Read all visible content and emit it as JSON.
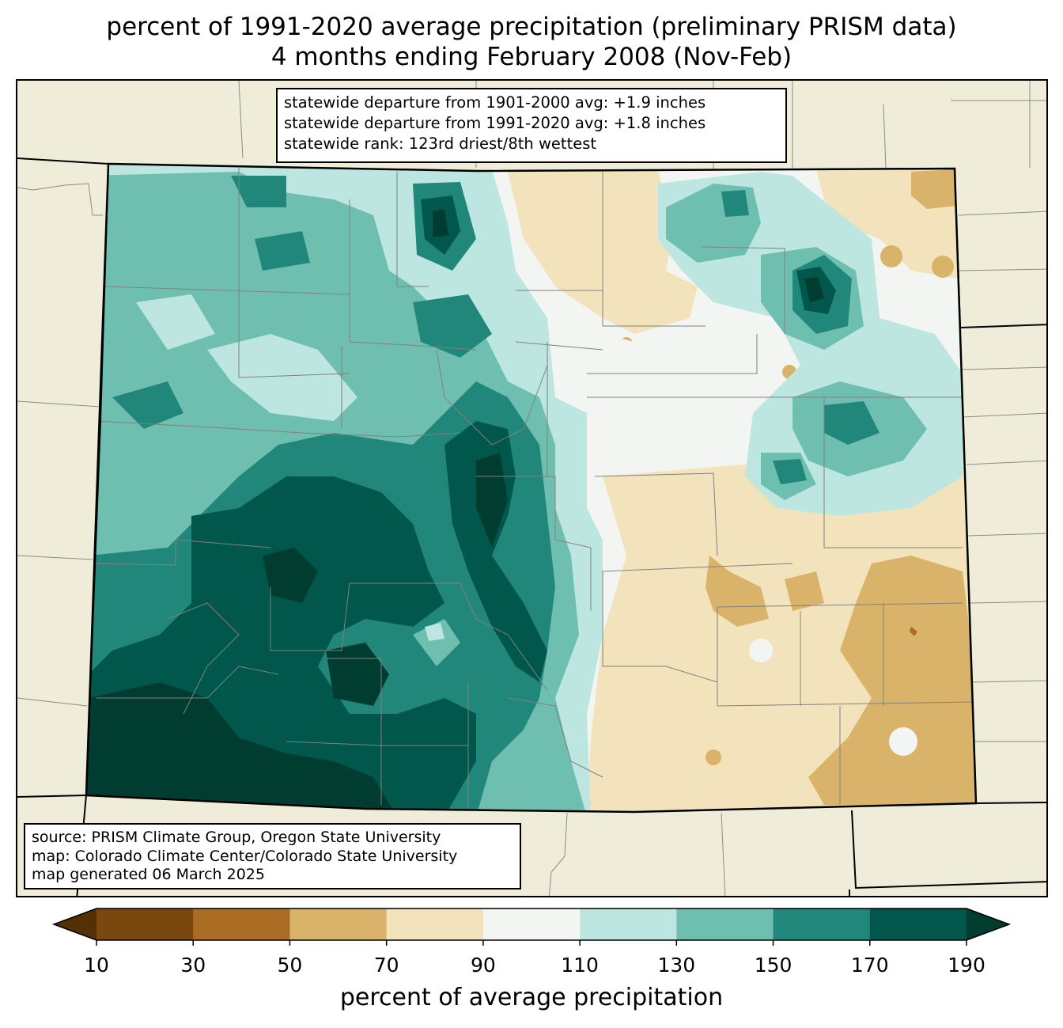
{
  "title": {
    "line1": "percent of 1991-2020 average precipitation (preliminary PRISM data)",
    "line2": "4 months ending February 2008 (Nov-Feb)"
  },
  "stats": {
    "line1": "statewide departure from 1901-2000 avg: +1.9 inches",
    "line2": "statewide departure from 1991-2020 avg: +1.8 inches",
    "line3": "statewide rank: 123rd driest/8th wettest"
  },
  "source": {
    "line1": "source: PRISM Climate Group, Oregon State University",
    "line2": "map: Colorado Climate Center/Colorado State University",
    "line3": "map generated 06 March 2025"
  },
  "colorbar": {
    "label": "percent of average precipitation",
    "ticks": [
      "10",
      "30",
      "50",
      "70",
      "90",
      "110",
      "130",
      "150",
      "170",
      "190"
    ],
    "under_color": "#543005",
    "over_color": "#003c30",
    "bins": [
      {
        "min": 10,
        "max": 30,
        "color": "#7a470f"
      },
      {
        "min": 30,
        "max": 50,
        "color": "#ab6d23"
      },
      {
        "min": 50,
        "max": 70,
        "color": "#dab36b"
      },
      {
        "min": 70,
        "max": 90,
        "color": "#f3e3bc"
      },
      {
        "min": 90,
        "max": 110,
        "color": "#f3f5f3"
      },
      {
        "min": 110,
        "max": 130,
        "color": "#bde6e0"
      },
      {
        "min": 130,
        "max": 150,
        "color": "#6fbfb1"
      },
      {
        "min": 150,
        "max": 170,
        "color": "#22877b"
      },
      {
        "min": 170,
        "max": 190,
        "color": "#01574b"
      }
    ]
  },
  "map": {
    "background_color": "#efedda",
    "state_border_color": "#000000",
    "county_line_color": "#808080"
  }
}
